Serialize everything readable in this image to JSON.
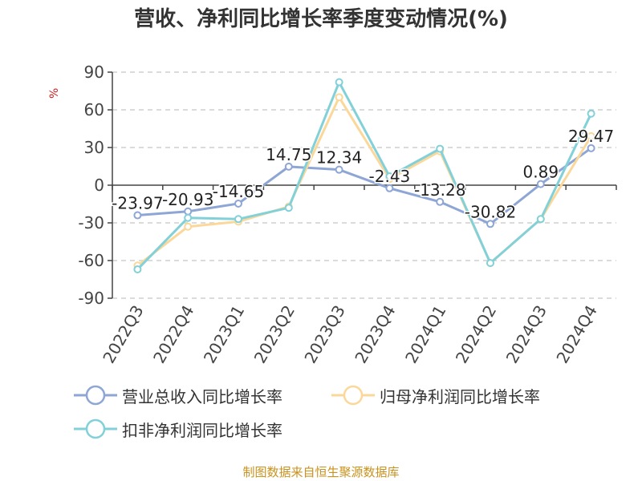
{
  "chart_data": {
    "type": "line",
    "title": "营收、净利同比增长率季度变动情况(%)",
    "ylabel": "%",
    "xlabel": "",
    "categories": [
      "2022Q3",
      "2022Q4",
      "2023Q1",
      "2023Q2",
      "2023Q3",
      "2023Q4",
      "2024Q1",
      "2024Q2",
      "2024Q3",
      "2024Q4"
    ],
    "ylim": [
      -90,
      90
    ],
    "yticks": [
      90,
      60,
      30,
      0,
      -30,
      -60,
      -90
    ],
    "grid": true,
    "legend_position": "bottom",
    "series": [
      {
        "name": "营业总收入同比增长率",
        "color": "#8ea6d6",
        "values": [
          -23.97,
          -20.93,
          -14.65,
          14.75,
          12.34,
          -2.43,
          -13.28,
          -30.82,
          0.89,
          29.47
        ],
        "labels": [
          "-23.97",
          "-20.93",
          "-14.65",
          "14.75",
          "12.34",
          "-2.43",
          "-13.28",
          "-30.82",
          "0.89",
          "29.47"
        ]
      },
      {
        "name": "归母净利润同比增长率",
        "color": "#fbd89a",
        "values": [
          -64,
          -33,
          -29,
          -17,
          70,
          5,
          27,
          -62,
          -27,
          39
        ]
      },
      {
        "name": "扣非净利润同比增长率",
        "color": "#82d1d8",
        "values": [
          -67,
          -26,
          -27,
          -18,
          82,
          7,
          29,
          -62,
          -27,
          57
        ]
      }
    ]
  },
  "source": "制图数据来自恒生聚源数据库"
}
